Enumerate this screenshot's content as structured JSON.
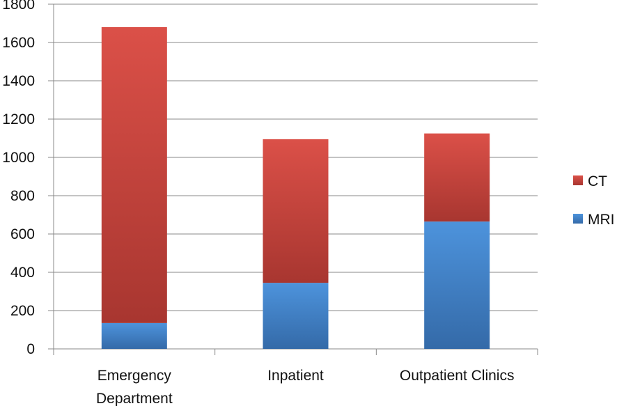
{
  "chart_data": {
    "type": "bar",
    "stacked": true,
    "title": "",
    "xlabel": "",
    "ylabel": "",
    "ylim": [
      0,
      1800
    ],
    "yticks": [
      0,
      200,
      400,
      600,
      800,
      1000,
      1200,
      1400,
      1600,
      1800
    ],
    "grid": true,
    "legend_position": "right",
    "categories": [
      [
        "Emergency",
        "Department"
      ],
      [
        "Inpatient"
      ],
      [
        "Outpatient Clinics"
      ]
    ],
    "series": [
      {
        "name": "MRI",
        "values": [
          135,
          345,
          665
        ],
        "color": "#3d7cc4"
      },
      {
        "name": "CT",
        "values": [
          1545,
          750,
          460
        ],
        "color": "#c2403a"
      }
    ],
    "legend": [
      {
        "name": "CT",
        "color": "#c2403a"
      },
      {
        "name": "MRI",
        "color": "#3d7cc4"
      }
    ]
  }
}
